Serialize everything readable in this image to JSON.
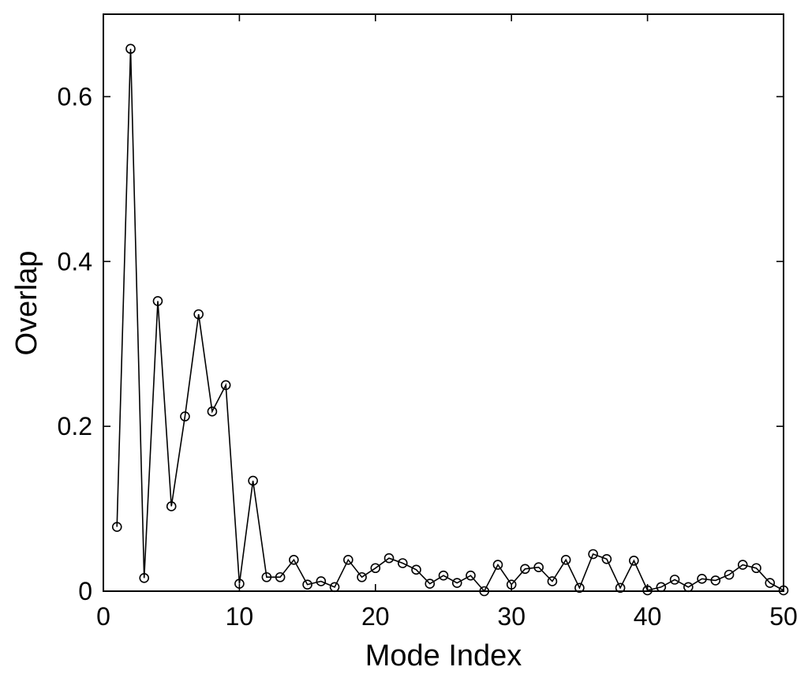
{
  "chart_data": {
    "type": "line",
    "title": "",
    "xlabel": "Mode Index",
    "ylabel": "Overlap",
    "xlim": [
      0,
      50
    ],
    "ylim": [
      0,
      0.7
    ],
    "xticks": [
      0,
      10,
      20,
      30,
      40,
      50
    ],
    "yticks": [
      0,
      0.2,
      0.4,
      0.6
    ],
    "ytick_labels": [
      "0",
      "0.2",
      "0.4",
      "0.6"
    ],
    "grid": false,
    "marker": "open-circle",
    "line_color": "#000000",
    "series": [
      {
        "x": [
          1,
          2,
          3,
          4,
          5,
          6,
          7,
          8,
          9,
          10,
          11,
          12,
          13,
          14,
          15,
          16,
          17,
          18,
          19,
          20,
          21,
          22,
          23,
          24,
          25,
          26,
          27,
          28,
          29,
          30,
          31,
          32,
          33,
          34,
          35,
          36,
          37,
          38,
          39,
          40,
          41,
          42,
          43,
          44,
          45,
          46,
          47,
          48,
          49,
          50
        ],
        "values": [
          0.078,
          0.658,
          0.016,
          0.352,
          0.103,
          0.212,
          0.336,
          0.218,
          0.25,
          0.009,
          0.134,
          0.017,
          0.017,
          0.038,
          0.008,
          0.012,
          0.005,
          0.038,
          0.017,
          0.028,
          0.04,
          0.034,
          0.026,
          0.009,
          0.019,
          0.01,
          0.019,
          0.0,
          0.032,
          0.008,
          0.027,
          0.029,
          0.012,
          0.038,
          0.004,
          0.045,
          0.039,
          0.004,
          0.037,
          0.001,
          0.005,
          0.014,
          0.005,
          0.015,
          0.013,
          0.02,
          0.032,
          0.028,
          0.01,
          0.001
        ]
      }
    ]
  }
}
